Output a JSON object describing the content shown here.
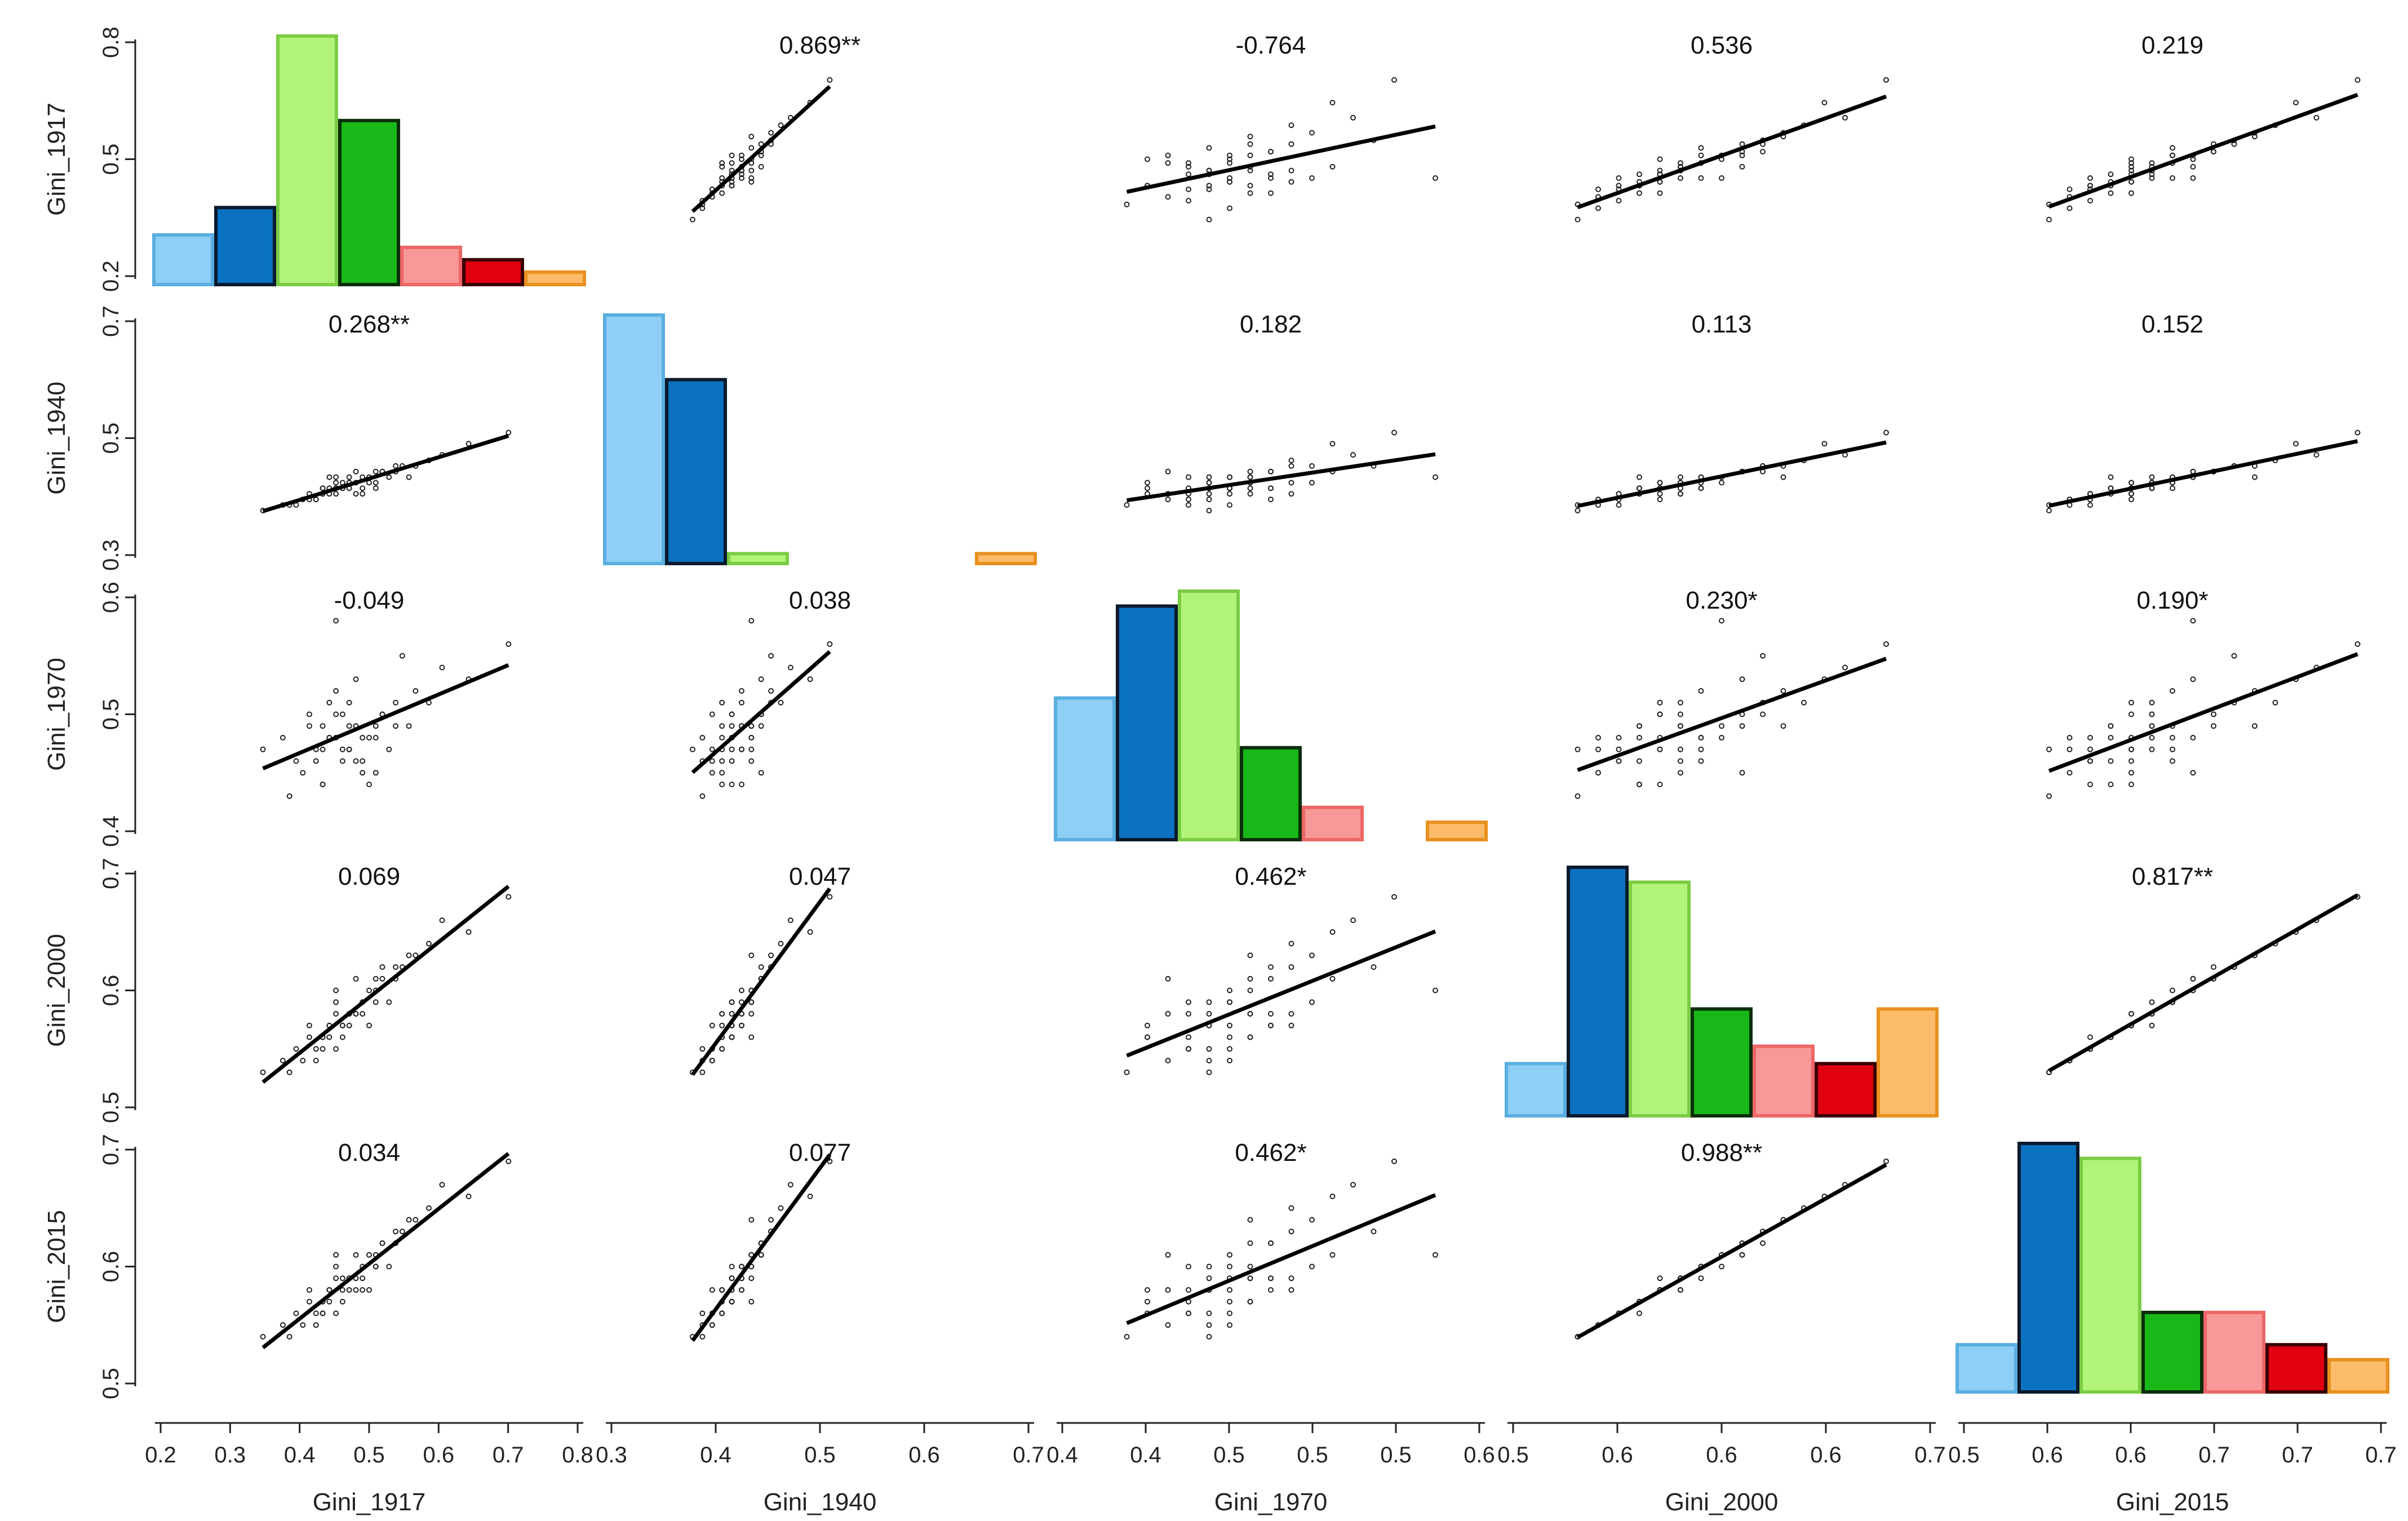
{
  "chart_data": {
    "type": "scatter-matrix",
    "variables": [
      "Gini_1917",
      "Gini_1940",
      "Gini_1970",
      "Gini_2000",
      "Gini_2015"
    ],
    "axis_ranges": [
      [
        0.2,
        0.82
      ],
      [
        0.3,
        0.72
      ],
      [
        0.4,
        0.6
      ],
      [
        0.5,
        0.7
      ],
      [
        0.5,
        0.7
      ]
    ],
    "x_tick_labels": [
      [
        "0.2",
        "0.3",
        "0.4",
        "0.5",
        "0.6",
        "0.7",
        "0.8"
      ],
      [
        "0.3",
        "0.4",
        "0.5",
        "0.6",
        "0.7"
      ],
      [
        "0.4",
        "0.4",
        "0.5",
        "0.5",
        "0.5",
        "0.6"
      ],
      [
        "0.5",
        "0.6",
        "0.6",
        "0.6",
        "0.7"
      ],
      [
        "0.5",
        "0.6",
        "0.6",
        "0.7",
        "0.7",
        "0.7"
      ]
    ],
    "y_tick_labels": [
      [
        "0.2",
        "0.5",
        "0.8"
      ],
      [
        "0.3",
        "0.5",
        "0.7"
      ],
      [
        "0.4",
        "0.5",
        "0.6"
      ],
      [
        "0.5",
        "0.6",
        "0.7"
      ],
      [
        "0.5",
        "0.6",
        "0.7"
      ]
    ],
    "correlations": [
      {
        "row": 0,
        "col": 1,
        "label": "0.869**"
      },
      {
        "row": 0,
        "col": 2,
        "label": "-0.764"
      },
      {
        "row": 0,
        "col": 3,
        "label": "0.536"
      },
      {
        "row": 0,
        "col": 4,
        "label": "0.219"
      },
      {
        "row": 1,
        "col": 0,
        "label": "0.268**"
      },
      {
        "row": 1,
        "col": 2,
        "label": "0.182"
      },
      {
        "row": 1,
        "col": 3,
        "label": "0.113"
      },
      {
        "row": 1,
        "col": 4,
        "label": "0.152"
      },
      {
        "row": 2,
        "col": 0,
        "label": "-0.049"
      },
      {
        "row": 2,
        "col": 1,
        "label": "0.038"
      },
      {
        "row": 2,
        "col": 3,
        "label": "0.230*"
      },
      {
        "row": 2,
        "col": 4,
        "label": "0.190*"
      },
      {
        "row": 3,
        "col": 0,
        "label": "0.069"
      },
      {
        "row": 3,
        "col": 1,
        "label": "0.047"
      },
      {
        "row": 3,
        "col": 2,
        "label": "0.462*"
      },
      {
        "row": 3,
        "col": 4,
        "label": "0.817**"
      },
      {
        "row": 4,
        "col": 0,
        "label": "0.034"
      },
      {
        "row": 4,
        "col": 1,
        "label": "0.077"
      },
      {
        "row": 4,
        "col": 2,
        "label": "0.462*"
      },
      {
        "row": 4,
        "col": 3,
        "label": "0.988**"
      }
    ],
    "histogram_colors": [
      "#8ecff5",
      "#0a72c0",
      "#b2f47a",
      "#18b818",
      "#f89898",
      "#e00010",
      "#fbbb6a"
    ],
    "histogram_border_colors": [
      "#5aaee0",
      "#0a1a2e",
      "#7bcc44",
      "#0a2e0a",
      "#ee6666",
      "#3a0000",
      "#e8901e"
    ],
    "histograms": [
      {
        "var": "Gini_1917",
        "values": [
          20,
          31,
          100,
          66,
          15,
          10,
          5
        ]
      },
      {
        "var": "Gini_1940",
        "values": [
          100,
          74,
          4,
          0,
          0,
          0,
          4
        ]
      },
      {
        "var": "Gini_1970",
        "values": [
          57,
          94,
          100,
          37,
          13,
          0,
          7
        ]
      },
      {
        "var": "Gini_2000",
        "values": [
          21,
          100,
          94,
          43,
          28,
          21,
          43
        ]
      },
      {
        "var": "Gini_2015",
        "values": [
          19,
          100,
          94,
          32,
          32,
          19,
          13
        ]
      }
    ],
    "points": [
      [
        0.45,
        0.42,
        0.48,
        0.57,
        0.58
      ],
      [
        0.48,
        0.43,
        0.47,
        0.58,
        0.59
      ],
      [
        0.42,
        0.41,
        0.49,
        0.56,
        0.57
      ],
      [
        0.5,
        0.44,
        0.46,
        0.59,
        0.6
      ],
      [
        0.47,
        0.42,
        0.5,
        0.57,
        0.59
      ],
      [
        0.52,
        0.45,
        0.45,
        0.61,
        0.61
      ],
      [
        0.46,
        0.41,
        0.48,
        0.55,
        0.56
      ],
      [
        0.43,
        0.4,
        0.47,
        0.54,
        0.55
      ],
      [
        0.55,
        0.46,
        0.51,
        0.62,
        0.63
      ],
      [
        0.49,
        0.43,
        0.49,
        0.58,
        0.59
      ],
      [
        0.44,
        0.42,
        0.44,
        0.56,
        0.57
      ],
      [
        0.51,
        0.44,
        0.48,
        0.6,
        0.61
      ],
      [
        0.4,
        0.39,
        0.46,
        0.55,
        0.56
      ],
      [
        0.53,
        0.45,
        0.5,
        0.61,
        0.62
      ],
      [
        0.48,
        0.42,
        0.47,
        0.57,
        0.58
      ],
      [
        0.46,
        0.43,
        0.52,
        0.59,
        0.6
      ],
      [
        0.57,
        0.44,
        0.49,
        0.63,
        0.64
      ],
      [
        0.5,
        0.41,
        0.45,
        0.58,
        0.58
      ],
      [
        0.45,
        0.44,
        0.48,
        0.56,
        0.57
      ],
      [
        0.42,
        0.4,
        0.5,
        0.57,
        0.58
      ],
      [
        0.6,
        0.47,
        0.51,
        0.64,
        0.65
      ],
      [
        0.47,
        0.42,
        0.46,
        0.56,
        0.57
      ],
      [
        0.52,
        0.43,
        0.49,
        0.6,
        0.6
      ],
      [
        0.44,
        0.41,
        0.47,
        0.55,
        0.56
      ],
      [
        0.49,
        0.45,
        0.53,
        0.61,
        0.61
      ],
      [
        0.38,
        0.39,
        0.48,
        0.54,
        0.55
      ],
      [
        0.54,
        0.44,
        0.47,
        0.59,
        0.6
      ],
      [
        0.46,
        0.42,
        0.5,
        0.58,
        0.59
      ],
      [
        0.51,
        0.43,
        0.44,
        0.57,
        0.58
      ],
      [
        0.43,
        0.4,
        0.46,
        0.55,
        0.56
      ],
      [
        0.58,
        0.46,
        0.52,
        0.63,
        0.64
      ],
      [
        0.48,
        0.44,
        0.49,
        0.58,
        0.59
      ],
      [
        0.45,
        0.41,
        0.51,
        0.57,
        0.58
      ],
      [
        0.5,
        0.42,
        0.48,
        0.59,
        0.59
      ],
      [
        0.41,
        0.4,
        0.45,
        0.54,
        0.55
      ],
      [
        0.53,
        0.45,
        0.5,
        0.62,
        0.62
      ],
      [
        0.47,
        0.43,
        0.47,
        0.57,
        0.58
      ],
      [
        0.62,
        0.48,
        0.54,
        0.66,
        0.67
      ],
      [
        0.44,
        0.42,
        0.49,
        0.56,
        0.57
      ],
      [
        0.49,
        0.41,
        0.46,
        0.58,
        0.58
      ],
      [
        0.56,
        0.46,
        0.55,
        0.62,
        0.63
      ],
      [
        0.72,
        0.52,
        0.56,
        0.68,
        0.69
      ],
      [
        0.39,
        0.39,
        0.43,
        0.53,
        0.54
      ],
      [
        0.46,
        0.44,
        0.58,
        0.6,
        0.61
      ],
      [
        0.52,
        0.42,
        0.48,
        0.59,
        0.6
      ],
      [
        0.44,
        0.41,
        0.44,
        0.56,
        0.56
      ],
      [
        0.66,
        0.5,
        0.53,
        0.65,
        0.66
      ],
      [
        0.48,
        0.43,
        0.51,
        0.58,
        0.59
      ],
      [
        0.35,
        0.38,
        0.47,
        0.53,
        0.54
      ],
      [
        0.55,
        0.45,
        0.49,
        0.61,
        0.62
      ]
    ]
  }
}
